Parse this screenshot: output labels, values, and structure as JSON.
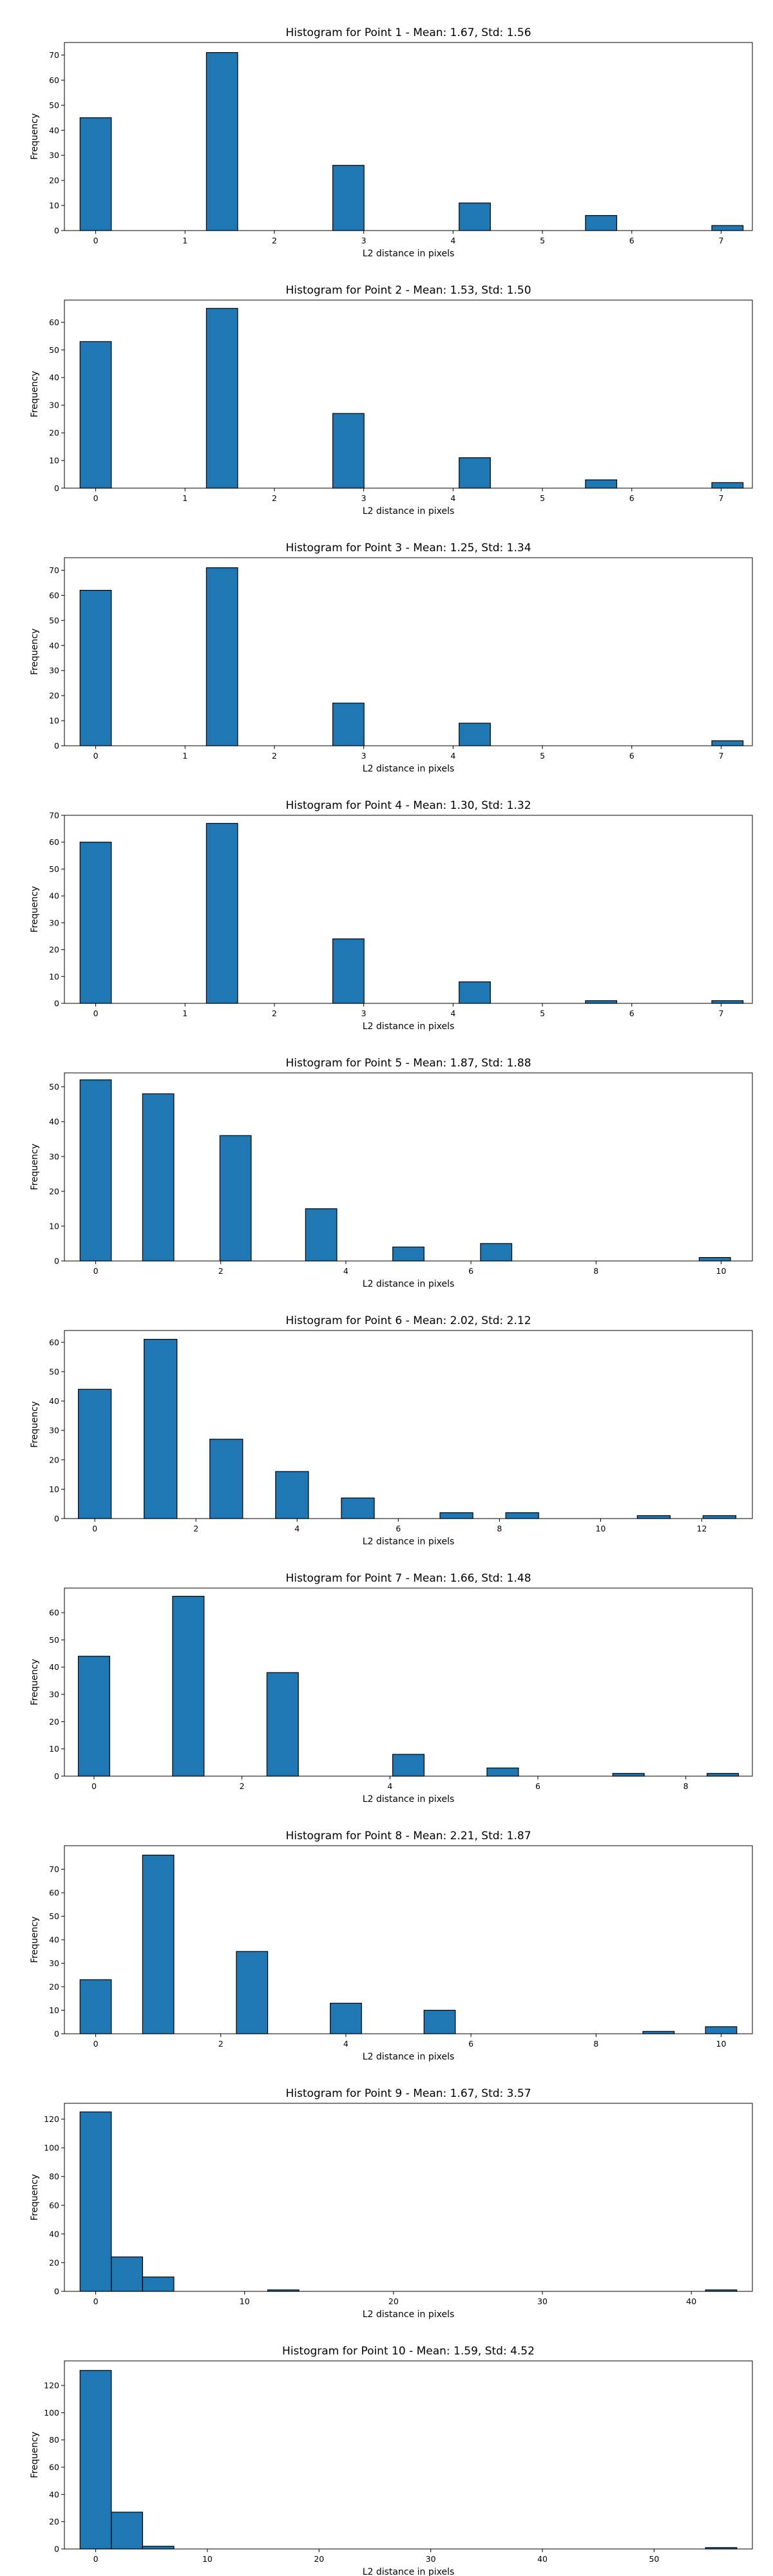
{
  "chart_data": [
    {
      "type": "bar",
      "title": "Histogram for Point 1 - Mean: 1.67, Std: 1.56",
      "xlabel": "L2 distance in pixels",
      "ylabel": "Frequency",
      "xlim": [
        -0.35,
        7.35
      ],
      "ylim": [
        0,
        75
      ],
      "xticks": [
        0,
        1,
        2,
        3,
        4,
        5,
        6,
        7
      ],
      "yticks": [
        0,
        10,
        20,
        30,
        40,
        50,
        60,
        70
      ],
      "bin_width": 0.35,
      "bars": [
        {
          "x": 0.0,
          "value": 45
        },
        {
          "x": 1.4142,
          "value": 71
        },
        {
          "x": 2.8284,
          "value": 26
        },
        {
          "x": 4.2426,
          "value": 11
        },
        {
          "x": 5.6569,
          "value": 6
        },
        {
          "x": 7.0711,
          "value": 2
        }
      ]
    },
    {
      "type": "bar",
      "title": "Histogram for Point 2 - Mean: 1.53, Std: 1.50",
      "xlabel": "L2 distance in pixels",
      "ylabel": "Frequency",
      "xlim": [
        -0.35,
        7.35
      ],
      "ylim": [
        0,
        68
      ],
      "xticks": [
        0,
        1,
        2,
        3,
        4,
        5,
        6,
        7
      ],
      "yticks": [
        0,
        10,
        20,
        30,
        40,
        50,
        60
      ],
      "bin_width": 0.35,
      "bars": [
        {
          "x": 0.0,
          "value": 53
        },
        {
          "x": 1.4142,
          "value": 65
        },
        {
          "x": 2.8284,
          "value": 27
        },
        {
          "x": 4.2426,
          "value": 11
        },
        {
          "x": 5.6569,
          "value": 3
        },
        {
          "x": 7.0711,
          "value": 2
        }
      ]
    },
    {
      "type": "bar",
      "title": "Histogram for Point 3 - Mean: 1.25, Std: 1.34",
      "xlabel": "L2 distance in pixels",
      "ylabel": "Frequency",
      "xlim": [
        -0.35,
        7.35
      ],
      "ylim": [
        0,
        75
      ],
      "xticks": [
        0,
        1,
        2,
        3,
        4,
        5,
        6,
        7
      ],
      "yticks": [
        0,
        10,
        20,
        30,
        40,
        50,
        60,
        70
      ],
      "bin_width": 0.35,
      "bars": [
        {
          "x": 0.0,
          "value": 62
        },
        {
          "x": 1.4142,
          "value": 71
        },
        {
          "x": 2.8284,
          "value": 17
        },
        {
          "x": 4.2426,
          "value": 9
        },
        {
          "x": 7.0711,
          "value": 2
        }
      ]
    },
    {
      "type": "bar",
      "title": "Histogram for Point 4 - Mean: 1.30, Std: 1.32",
      "xlabel": "L2 distance in pixels",
      "ylabel": "Frequency",
      "xlim": [
        -0.35,
        7.35
      ],
      "ylim": [
        0,
        70
      ],
      "xticks": [
        0,
        1,
        2,
        3,
        4,
        5,
        6,
        7
      ],
      "yticks": [
        0,
        10,
        20,
        30,
        40,
        50,
        60,
        70
      ],
      "bin_width": 0.35,
      "bars": [
        {
          "x": 0.0,
          "value": 60
        },
        {
          "x": 1.4142,
          "value": 67
        },
        {
          "x": 2.8284,
          "value": 24
        },
        {
          "x": 4.2426,
          "value": 8
        },
        {
          "x": 5.6569,
          "value": 1
        },
        {
          "x": 7.0711,
          "value": 1
        }
      ]
    },
    {
      "type": "bar",
      "title": "Histogram for Point 5 - Mean: 1.87, Std: 1.88",
      "xlabel": "L2 distance in pixels",
      "ylabel": "Frequency",
      "xlim": [
        -0.5,
        10.5
      ],
      "ylim": [
        0,
        54
      ],
      "xticks": [
        0,
        2,
        4,
        6,
        8,
        10
      ],
      "yticks": [
        0,
        10,
        20,
        30,
        40,
        50
      ],
      "bin_width": 0.5,
      "bars": [
        {
          "x": 0.0,
          "value": 52
        },
        {
          "x": 1.0,
          "value": 48
        },
        {
          "x": 2.236,
          "value": 36
        },
        {
          "x": 3.6056,
          "value": 15
        },
        {
          "x": 5.0,
          "value": 4
        },
        {
          "x": 6.4031,
          "value": 5
        },
        {
          "x": 9.8995,
          "value": 1
        }
      ]
    },
    {
      "type": "bar",
      "title": "Histogram for Point 6 - Mean: 2.02, Std: 2.12",
      "xlabel": "L2 distance in pixels",
      "ylabel": "Frequency",
      "xlim": [
        -0.6,
        13.0
      ],
      "ylim": [
        0,
        64
      ],
      "xticks": [
        0,
        2,
        4,
        6,
        8,
        10,
        12
      ],
      "yticks": [
        0,
        10,
        20,
        30,
        40,
        50,
        60
      ],
      "bin_width": 0.65,
      "bars": [
        {
          "x": 0.0,
          "value": 44
        },
        {
          "x": 1.3,
          "value": 61
        },
        {
          "x": 2.6,
          "value": 27
        },
        {
          "x": 3.9,
          "value": 16
        },
        {
          "x": 5.2,
          "value": 7
        },
        {
          "x": 7.15,
          "value": 2
        },
        {
          "x": 8.45,
          "value": 2
        },
        {
          "x": 11.05,
          "value": 1
        },
        {
          "x": 12.35,
          "value": 1
        }
      ]
    },
    {
      "type": "bar",
      "title": "Histogram for Point 7 - Mean: 1.66, Std: 1.48",
      "xlabel": "L2 distance in pixels",
      "ylabel": "Frequency",
      "xlim": [
        -0.4,
        8.9
      ],
      "ylim": [
        0,
        69
      ],
      "xticks": [
        0,
        2,
        4,
        6,
        8
      ],
      "yticks": [
        0,
        10,
        20,
        30,
        40,
        50,
        60
      ],
      "bin_width": 0.425,
      "bars": [
        {
          "x": 0.0,
          "value": 44
        },
        {
          "x": 1.275,
          "value": 66
        },
        {
          "x": 2.55,
          "value": 38
        },
        {
          "x": 4.25,
          "value": 8
        },
        {
          "x": 5.525,
          "value": 3
        },
        {
          "x": 7.225,
          "value": 1
        },
        {
          "x": 8.5,
          "value": 1
        }
      ]
    },
    {
      "type": "bar",
      "title": "Histogram for Point 8 - Mean: 2.21, Std: 1.87",
      "xlabel": "L2 distance in pixels",
      "ylabel": "Frequency",
      "xlim": [
        -0.5,
        10.5
      ],
      "ylim": [
        0,
        80
      ],
      "xticks": [
        0,
        2,
        4,
        6,
        8,
        10
      ],
      "yticks": [
        0,
        10,
        20,
        30,
        40,
        50,
        60,
        70
      ],
      "bin_width": 0.5,
      "bars": [
        {
          "x": 0.0,
          "value": 23
        },
        {
          "x": 1.0,
          "value": 76
        },
        {
          "x": 2.5,
          "value": 35
        },
        {
          "x": 4.0,
          "value": 13
        },
        {
          "x": 5.5,
          "value": 10
        },
        {
          "x": 9.0,
          "value": 1
        },
        {
          "x": 10.0,
          "value": 3
        }
      ]
    },
    {
      "type": "bar",
      "title": "Histogram for Point 9 - Mean: 1.67, Std: 3.57",
      "xlabel": "L2 distance in pixels",
      "ylabel": "Frequency",
      "xlim": [
        -2.1,
        44.1
      ],
      "ylim": [
        0,
        131
      ],
      "xticks": [
        0,
        10,
        20,
        30,
        40
      ],
      "yticks": [
        0,
        20,
        40,
        60,
        80,
        100,
        120
      ],
      "bin_width": 2.1,
      "bars": [
        {
          "x": 0.0,
          "value": 125
        },
        {
          "x": 2.1,
          "value": 24
        },
        {
          "x": 4.2,
          "value": 10
        },
        {
          "x": 12.6,
          "value": 1
        },
        {
          "x": 42.0,
          "value": 1
        }
      ]
    },
    {
      "type": "bar",
      "title": "Histogram for Point 10 - Mean: 1.59, Std: 4.52",
      "xlabel": "L2 distance in pixels",
      "ylabel": "Frequency",
      "xlim": [
        -2.8,
        58.8
      ],
      "ylim": [
        0,
        138
      ],
      "xticks": [
        0,
        10,
        20,
        30,
        40,
        50
      ],
      "yticks": [
        0,
        20,
        40,
        60,
        80,
        100,
        120
      ],
      "bin_width": 2.8,
      "bars": [
        {
          "x": 0.0,
          "value": 131
        },
        {
          "x": 2.8,
          "value": 27
        },
        {
          "x": 5.6,
          "value": 2
        },
        {
          "x": 56.0,
          "value": 1
        }
      ]
    }
  ]
}
